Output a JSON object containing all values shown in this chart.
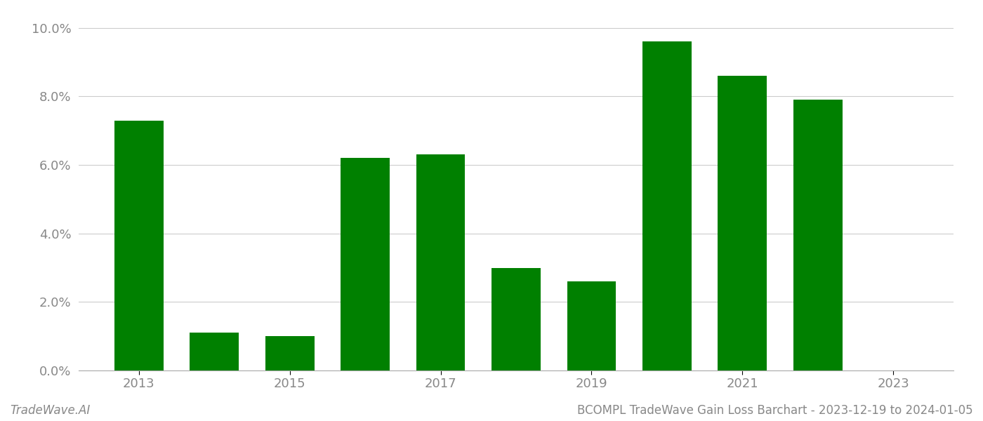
{
  "years": [
    2013,
    2014,
    2015,
    2016,
    2017,
    2018,
    2019,
    2020,
    2021,
    2022
  ],
  "values": [
    0.073,
    0.011,
    0.01,
    0.062,
    0.063,
    0.03,
    0.026,
    0.096,
    0.086,
    0.079
  ],
  "bar_color": "#008000",
  "ylim": [
    0.0,
    0.102
  ],
  "yticks": [
    0.0,
    0.02,
    0.04,
    0.06,
    0.08,
    0.1
  ],
  "grid_color": "#cccccc",
  "background_color": "#ffffff",
  "title": "BCOMPL TradeWave Gain Loss Barchart - 2023-12-19 to 2024-01-05",
  "watermark": "TradeWave.AI",
  "title_fontsize": 12,
  "tick_fontsize": 13,
  "tick_color": "#888888",
  "watermark_fontsize": 12,
  "label_years": [
    2013,
    2015,
    2017,
    2019,
    2021,
    2023
  ]
}
